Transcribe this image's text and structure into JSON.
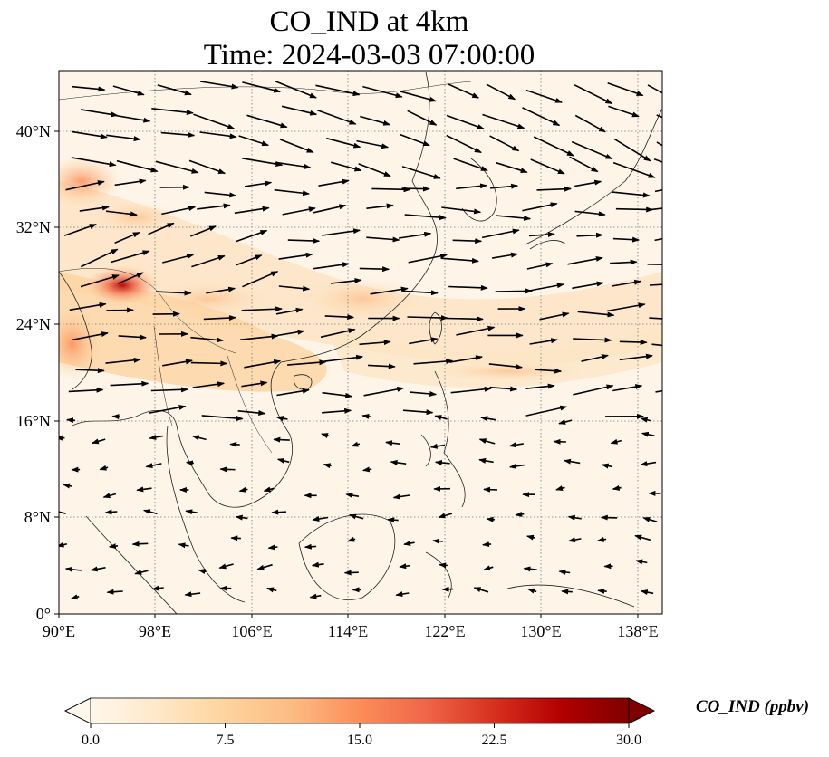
{
  "title": {
    "line1": "CO_IND at 4km",
    "line2": "Time: 2024-03-03 07:00:00"
  },
  "map": {
    "lon_ticks": [
      "90°E",
      "98°E",
      "106°E",
      "114°E",
      "122°E",
      "130°E",
      "138°E"
    ],
    "lat_ticks": [
      "0°",
      "8°N",
      "16°N",
      "24°N",
      "32°N",
      "40°N"
    ],
    "lon_range": [
      90,
      140
    ],
    "lat_range": [
      0,
      45
    ],
    "gridlines": "dotted",
    "field_colormap": "OrRd"
  },
  "colorbar": {
    "label": "CO_IND (ppbv)",
    "ticks": [
      "0.0",
      "7.5",
      "15.0",
      "22.5",
      "30.0"
    ],
    "range": [
      0,
      30
    ],
    "extend": "both",
    "colors": [
      "#fff7ec",
      "#fee8c8",
      "#fdd49e",
      "#fdbb84",
      "#fc8d59",
      "#ef6548",
      "#d7301f",
      "#b30000",
      "#7f0000"
    ]
  }
}
